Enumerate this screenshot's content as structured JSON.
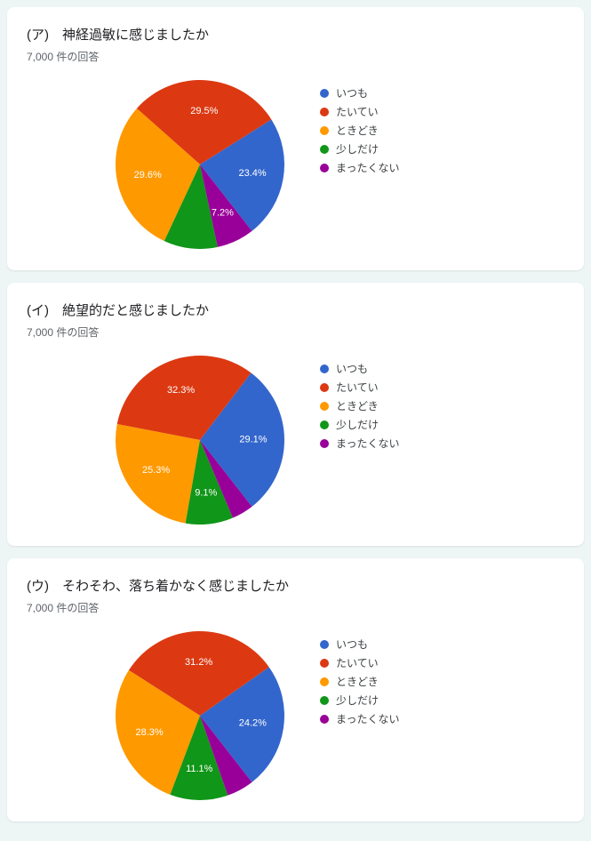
{
  "colors": {
    "blue": "#3366cc",
    "red": "#dc3912",
    "orange": "#ff9900",
    "green": "#109618",
    "purple": "#990099"
  },
  "legend_labels": [
    "いつも",
    "たいてい",
    "ときどき",
    "少しだけ",
    "まったくない"
  ],
  "response_suffix": " 件の回答",
  "charts": [
    {
      "title": "(ア)　神経過敏に感じましたか",
      "responses": "7,000",
      "slices": [
        {
          "value": 23.4,
          "label": "23.4%",
          "color_key": "blue"
        },
        {
          "value": 29.5,
          "label": "29.5%",
          "color_key": "red"
        },
        {
          "value": 29.6,
          "label": "29.6%",
          "color_key": "orange"
        },
        {
          "value": 10.3,
          "label": "",
          "color_key": "green"
        },
        {
          "value": 7.2,
          "label": "7.2%",
          "color_key": "purple"
        }
      ]
    },
    {
      "title": "(イ)　絶望的だと感じましたか",
      "responses": "7,000",
      "slices": [
        {
          "value": 29.1,
          "label": "29.1%",
          "color_key": "blue"
        },
        {
          "value": 32.3,
          "label": "32.3%",
          "color_key": "red"
        },
        {
          "value": 25.3,
          "label": "25.3%",
          "color_key": "orange"
        },
        {
          "value": 9.1,
          "label": "9.1%",
          "color_key": "green"
        },
        {
          "value": 4.2,
          "label": "",
          "color_key": "purple"
        }
      ]
    },
    {
      "title": "(ウ)　そわそわ、落ち着かなく感じましたか",
      "responses": "7,000",
      "slices": [
        {
          "value": 24.2,
          "label": "24.2%",
          "color_key": "blue"
        },
        {
          "value": 31.2,
          "label": "31.2%",
          "color_key": "red"
        },
        {
          "value": 28.3,
          "label": "28.3%",
          "color_key": "orange"
        },
        {
          "value": 11.1,
          "label": "11.1%",
          "color_key": "green"
        },
        {
          "value": 5.2,
          "label": "",
          "color_key": "purple"
        }
      ]
    }
  ],
  "pie": {
    "radius": 95,
    "label_radius": 60,
    "start_angle_deg": 52,
    "label_fontsize": 11
  }
}
